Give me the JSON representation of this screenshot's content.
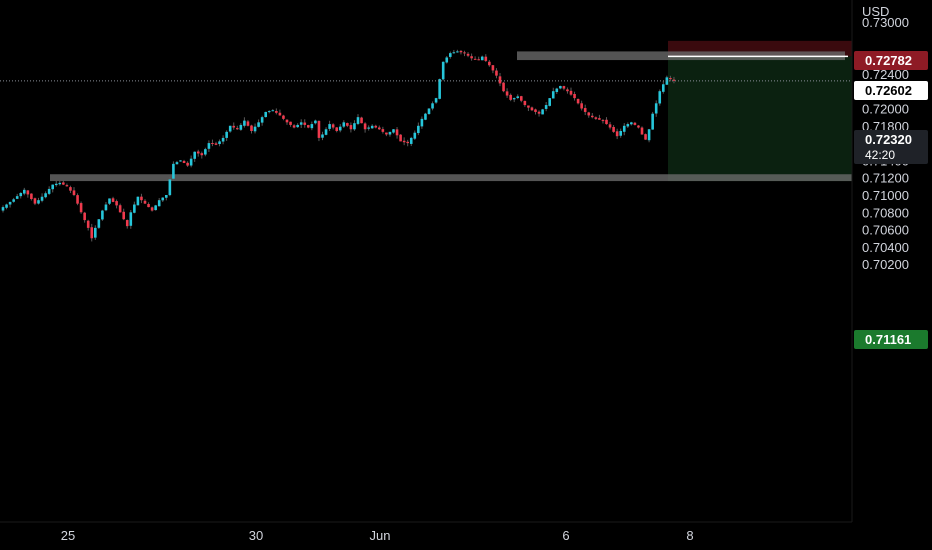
{
  "currency": "USD",
  "colors": {
    "background": "#000000",
    "up": "#26c6da",
    "down": "#ef3a4d",
    "zone": "#6b6b6b",
    "stop_fill": "#3a0a0e",
    "target_fill": "#0b2110",
    "stop_label": "#8e1b25",
    "target_label": "#1b7a2d",
    "current_label": "#1f2228",
    "text": "#d1d4dc"
  },
  "chart_data": {
    "type": "candlestick",
    "ylim": [
      0.701,
      0.731
    ],
    "y_ticks": [
      "0.73000",
      "0.72400",
      "0.72000",
      "0.71800",
      "0.71600",
      "0.71400",
      "0.71200",
      "0.71000",
      "0.70800",
      "0.70600",
      "0.70400",
      "0.70200"
    ],
    "x_ticks": [
      "25",
      "30",
      "Jun",
      "6",
      "8"
    ],
    "close_path": [
      [
        0,
        0.7086
      ],
      [
        3,
        0.7095
      ],
      [
        6,
        0.7106
      ],
      [
        9,
        0.709
      ],
      [
        12,
        0.7102
      ],
      [
        14,
        0.7112
      ],
      [
        16,
        0.7114
      ],
      [
        18,
        0.711
      ],
      [
        20,
        0.71
      ],
      [
        22,
        0.708
      ],
      [
        24,
        0.7062
      ],
      [
        25,
        0.705
      ],
      [
        26,
        0.7062
      ],
      [
        28,
        0.7082
      ],
      [
        30,
        0.7096
      ],
      [
        32,
        0.7088
      ],
      [
        34,
        0.7072
      ],
      [
        35,
        0.7064
      ],
      [
        36,
        0.708
      ],
      [
        38,
        0.7098
      ],
      [
        40,
        0.709
      ],
      [
        42,
        0.7082
      ],
      [
        44,
        0.7094
      ],
      [
        46,
        0.71
      ],
      [
        47,
        0.7118
      ],
      [
        48,
        0.7136
      ],
      [
        50,
        0.714
      ],
      [
        52,
        0.7134
      ],
      [
        54,
        0.715
      ],
      [
        56,
        0.7146
      ],
      [
        58,
        0.716
      ],
      [
        60,
        0.7158
      ],
      [
        62,
        0.7166
      ],
      [
        64,
        0.718
      ],
      [
        66,
        0.7176
      ],
      [
        68,
        0.7186
      ],
      [
        70,
        0.7174
      ],
      [
        72,
        0.7184
      ],
      [
        74,
        0.7196
      ],
      [
        76,
        0.7198
      ],
      [
        78,
        0.7192
      ],
      [
        80,
        0.7184
      ],
      [
        82,
        0.7178
      ],
      [
        84,
        0.7184
      ],
      [
        86,
        0.7178
      ],
      [
        88,
        0.7186
      ],
      [
        89,
        0.7166
      ],
      [
        90,
        0.717
      ],
      [
        92,
        0.7182
      ],
      [
        94,
        0.7174
      ],
      [
        96,
        0.7184
      ],
      [
        98,
        0.7176
      ],
      [
        100,
        0.719
      ],
      [
        102,
        0.7176
      ],
      [
        104,
        0.718
      ],
      [
        106,
        0.7176
      ],
      [
        108,
        0.717
      ],
      [
        110,
        0.7176
      ],
      [
        112,
        0.7162
      ],
      [
        114,
        0.716
      ],
      [
        116,
        0.7172
      ],
      [
        118,
        0.7188
      ],
      [
        120,
        0.72
      ],
      [
        122,
        0.7212
      ],
      [
        123,
        0.7234
      ],
      [
        124,
        0.7254
      ],
      [
        126,
        0.7264
      ],
      [
        128,
        0.7266
      ],
      [
        130,
        0.7264
      ],
      [
        132,
        0.7258
      ],
      [
        134,
        0.7256
      ],
      [
        135,
        0.726
      ],
      [
        137,
        0.725
      ],
      [
        139,
        0.7238
      ],
      [
        141,
        0.722
      ],
      [
        143,
        0.721
      ],
      [
        145,
        0.7214
      ],
      [
        147,
        0.7204
      ],
      [
        149,
        0.7198
      ],
      [
        151,
        0.7194
      ],
      [
        153,
        0.7204
      ],
      [
        155,
        0.722
      ],
      [
        157,
        0.7226
      ],
      [
        159,
        0.722
      ],
      [
        161,
        0.7212
      ],
      [
        163,
        0.72
      ],
      [
        165,
        0.7192
      ],
      [
        167,
        0.7188
      ],
      [
        169,
        0.7186
      ],
      [
        171,
        0.7178
      ],
      [
        173,
        0.7168
      ],
      [
        175,
        0.718
      ],
      [
        177,
        0.7184
      ],
      [
        179,
        0.7178
      ],
      [
        180,
        0.717
      ],
      [
        181,
        0.7164
      ],
      [
        182,
        0.7176
      ],
      [
        183,
        0.7194
      ],
      [
        184,
        0.7206
      ],
      [
        185,
        0.722
      ],
      [
        186,
        0.7228
      ],
      [
        187,
        0.7236
      ],
      [
        188,
        0.7234
      ],
      [
        189,
        0.7232
      ]
    ],
    "zones": [
      {
        "name": "resistance-zone",
        "low": 0.7256,
        "high": 0.7266
      },
      {
        "name": "support-zone",
        "low": 0.71161,
        "high": 0.7124
      }
    ],
    "position": {
      "entry": 0.72602,
      "stop": 0.72782,
      "target": 0.71161
    },
    "labels": {
      "stop": "0.72782",
      "entry": "0.72602",
      "current": "0.72320",
      "countdown": "42:20",
      "target": "0.71161"
    },
    "last_price": 0.7232
  }
}
